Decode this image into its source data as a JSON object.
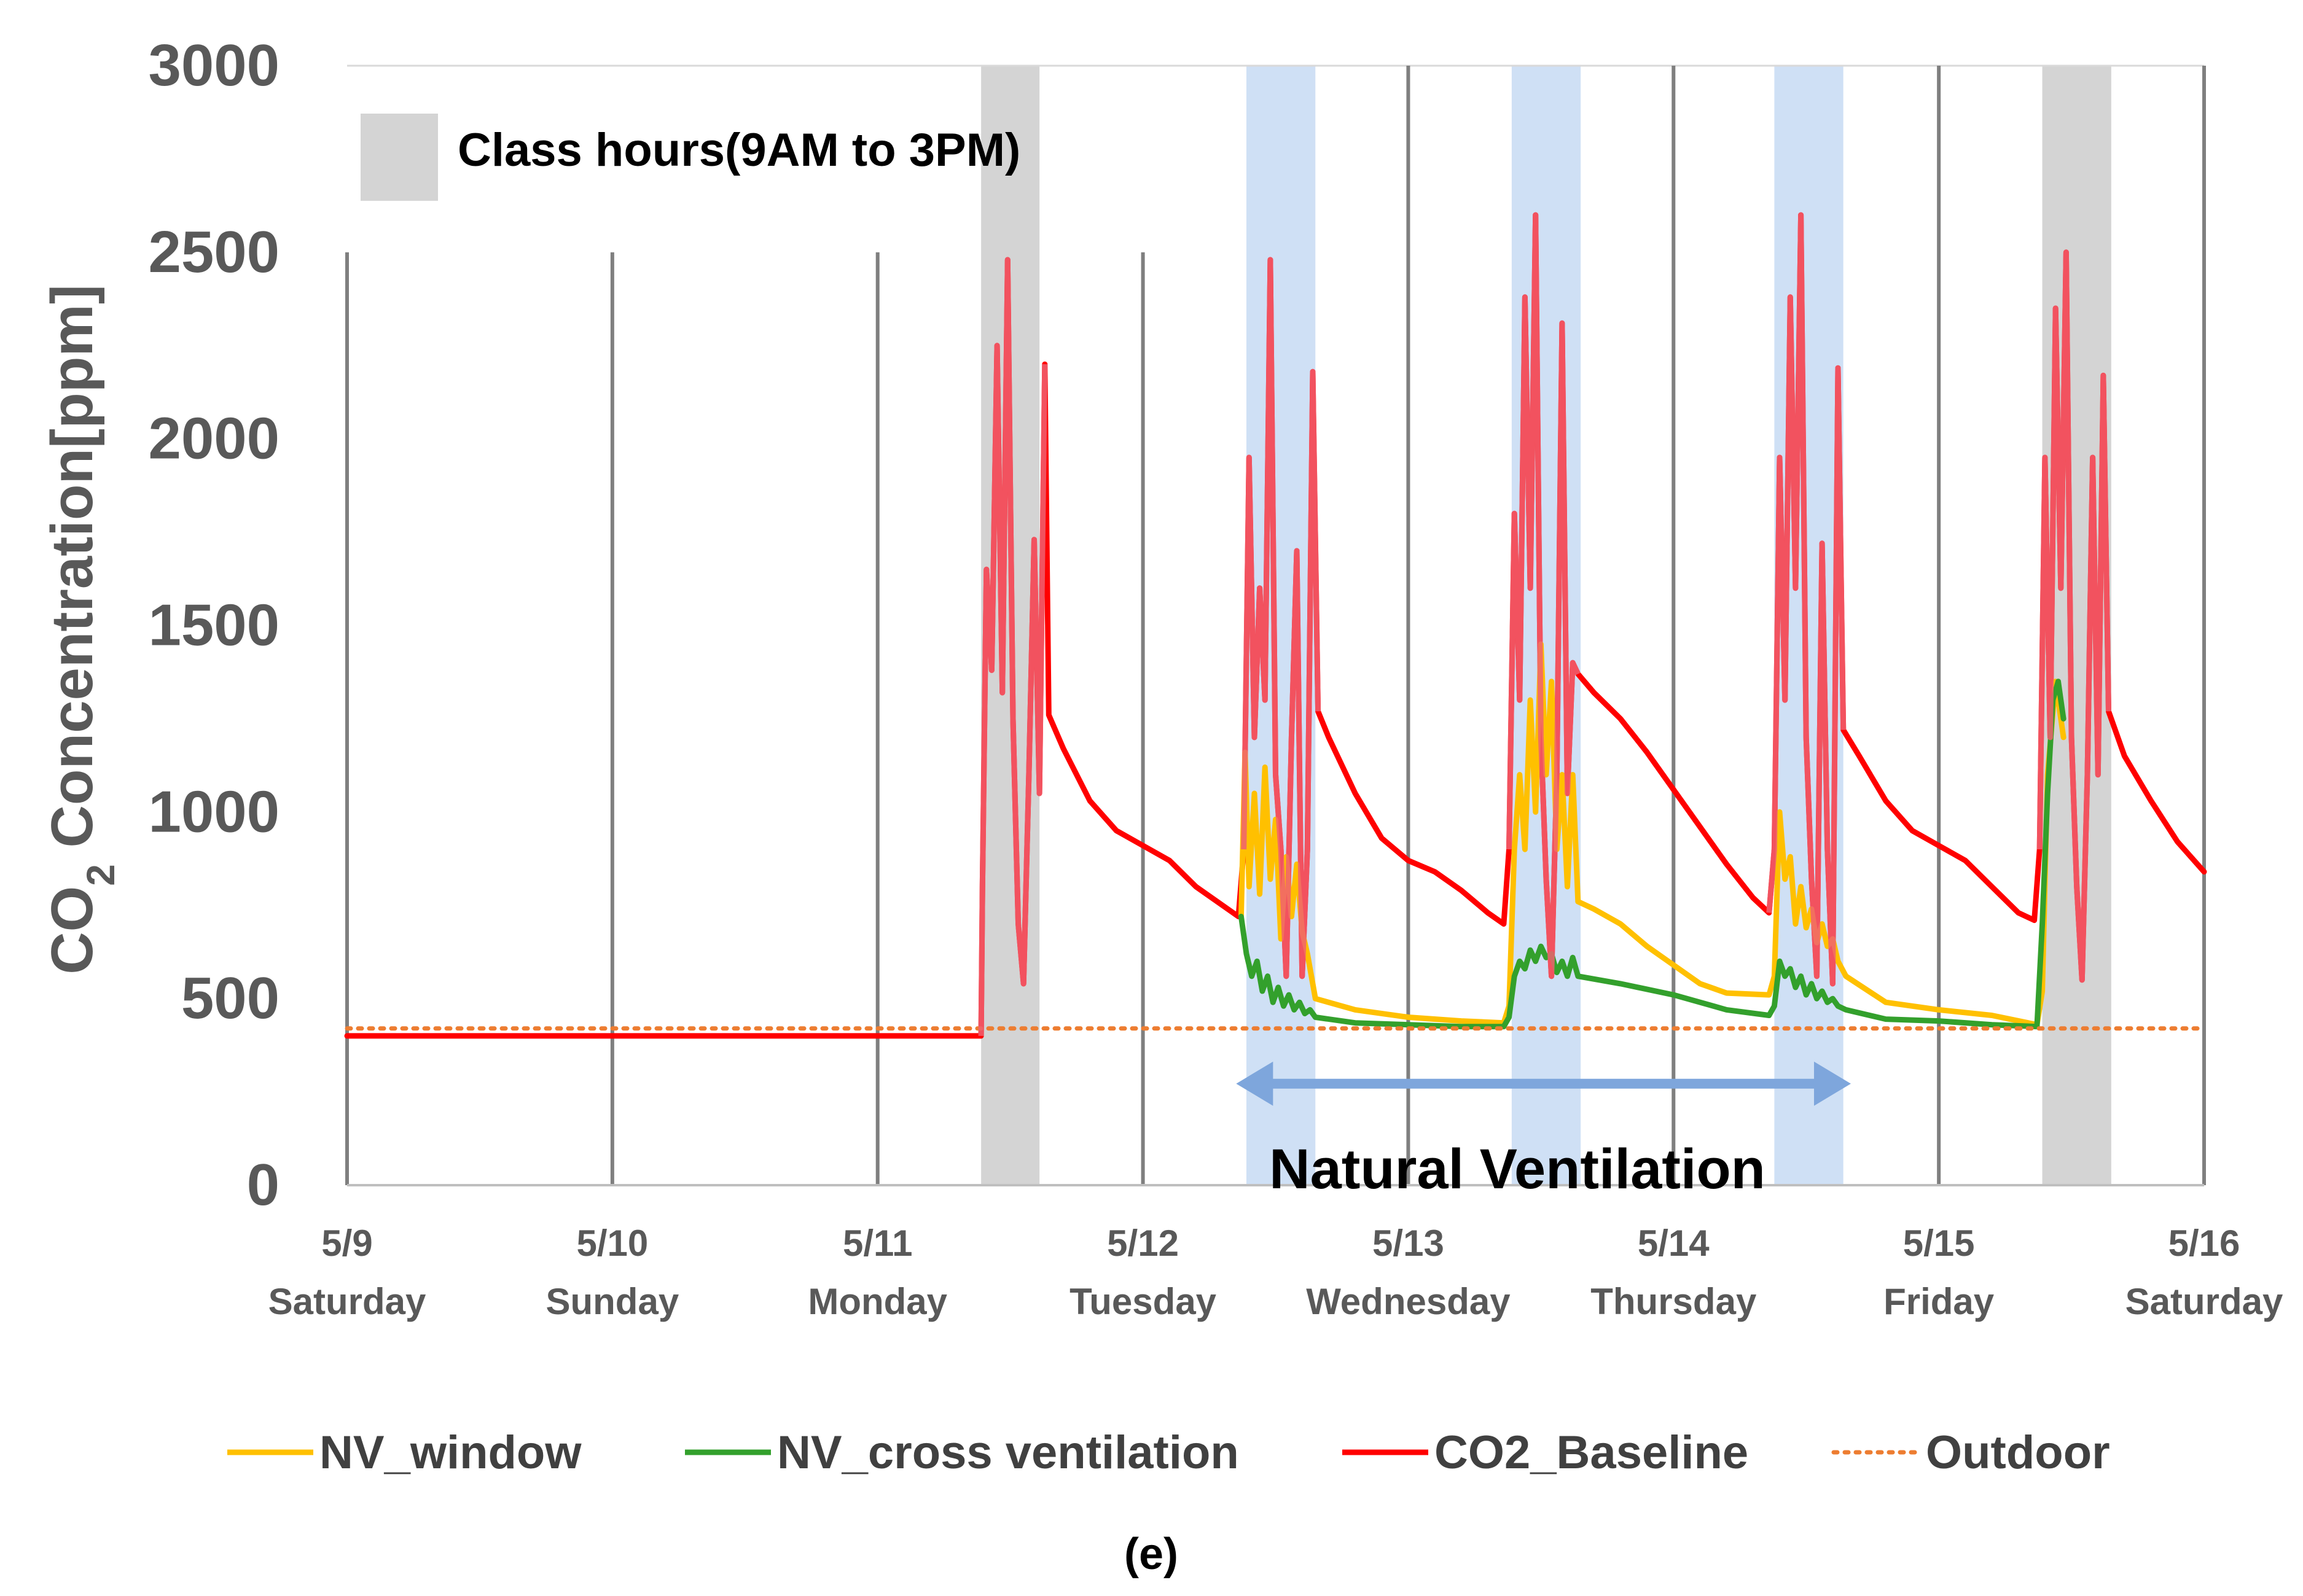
{
  "chart_data": {
    "type": "line",
    "ylabel": "CO2 Concentration[ppm]",
    "ylabel_parts": {
      "prefix": "CO",
      "subscript": "2",
      "suffix": " Concentration[ppm]"
    },
    "ylim": [
      0,
      3000
    ],
    "yticks": [
      0,
      500,
      1000,
      1500,
      2000,
      2500,
      3000
    ],
    "xlim": [
      0,
      7
    ],
    "x_unit": "days since 5/9 00:00",
    "x_ticks": [
      {
        "x": 0,
        "date": "5/9",
        "day": "Saturday"
      },
      {
        "x": 1,
        "date": "5/10",
        "day": "Sunday"
      },
      {
        "x": 2,
        "date": "5/11",
        "day": "Monday"
      },
      {
        "x": 3,
        "date": "5/12",
        "day": "Tuesday"
      },
      {
        "x": 4,
        "date": "5/13",
        "day": "Wednesday"
      },
      {
        "x": 5,
        "date": "5/14",
        "day": "Thursday"
      },
      {
        "x": 6,
        "date": "5/15",
        "day": "Friday"
      },
      {
        "x": 7,
        "date": "5/16",
        "day": "Saturday"
      }
    ],
    "grid": "vertical",
    "class_hours_label": "Class hours(9AM to 3PM)",
    "class_hours_bands": [
      {
        "x0": 2.39,
        "x1": 2.61,
        "kind": "class"
      },
      {
        "x0": 3.39,
        "x1": 3.65,
        "kind": "nv"
      },
      {
        "x0": 4.39,
        "x1": 4.65,
        "kind": "nv"
      },
      {
        "x0": 5.38,
        "x1": 5.64,
        "kind": "nv"
      },
      {
        "x0": 6.39,
        "x1": 6.65,
        "kind": "class"
      }
    ],
    "annotation": {
      "text": "Natural Ventilation",
      "from": 3.37,
      "to": 5.65,
      "y": 272
    },
    "series": [
      {
        "name": "NV_window",
        "color": "#ffc000",
        "style": "solid",
        "points": [
          [
            3.37,
            720
          ],
          [
            3.385,
            1160
          ],
          [
            3.4,
            800
          ],
          [
            3.42,
            1050
          ],
          [
            3.44,
            780
          ],
          [
            3.46,
            1120
          ],
          [
            3.48,
            820
          ],
          [
            3.5,
            980
          ],
          [
            3.52,
            660
          ],
          [
            3.54,
            880
          ],
          [
            3.56,
            720
          ],
          [
            3.58,
            860
          ],
          [
            3.6,
            680
          ],
          [
            3.62,
            620
          ],
          [
            3.65,
            500
          ],
          [
            3.8,
            470
          ],
          [
            4.0,
            450
          ],
          [
            4.2,
            440
          ],
          [
            4.36,
            435
          ],
          [
            4.38,
            480
          ],
          [
            4.4,
            900
          ],
          [
            4.42,
            1100
          ],
          [
            4.44,
            900
          ],
          [
            4.46,
            1300
          ],
          [
            4.48,
            1000
          ],
          [
            4.5,
            1450
          ],
          [
            4.52,
            1100
          ],
          [
            4.54,
            1350
          ],
          [
            4.56,
            900
          ],
          [
            4.58,
            1100
          ],
          [
            4.6,
            800
          ],
          [
            4.62,
            1100
          ],
          [
            4.64,
            760
          ],
          [
            4.7,
            740
          ],
          [
            4.8,
            700
          ],
          [
            4.9,
            640
          ],
          [
            5.0,
            590
          ],
          [
            5.1,
            540
          ],
          [
            5.2,
            515
          ],
          [
            5.36,
            510
          ],
          [
            5.38,
            560
          ],
          [
            5.4,
            1000
          ],
          [
            5.42,
            820
          ],
          [
            5.44,
            880
          ],
          [
            5.46,
            700
          ],
          [
            5.48,
            800
          ],
          [
            5.5,
            690
          ],
          [
            5.52,
            740
          ],
          [
            5.54,
            650
          ],
          [
            5.56,
            700
          ],
          [
            5.58,
            640
          ],
          [
            5.6,
            660
          ],
          [
            5.62,
            600
          ],
          [
            5.65,
            560
          ],
          [
            5.8,
            490
          ],
          [
            6.0,
            470
          ],
          [
            6.2,
            455
          ],
          [
            6.37,
            430
          ],
          [
            6.39,
            520
          ],
          [
            6.41,
            1100
          ],
          [
            6.44,
            1350
          ],
          [
            6.47,
            1200
          ]
        ]
      },
      {
        "name": "NV_cross ventilation",
        "color": "#33a02c",
        "style": "solid",
        "points": [
          [
            3.37,
            720
          ],
          [
            3.39,
            620
          ],
          [
            3.41,
            560
          ],
          [
            3.43,
            600
          ],
          [
            3.45,
            520
          ],
          [
            3.47,
            560
          ],
          [
            3.49,
            490
          ],
          [
            3.51,
            530
          ],
          [
            3.53,
            480
          ],
          [
            3.55,
            510
          ],
          [
            3.57,
            470
          ],
          [
            3.59,
            490
          ],
          [
            3.61,
            460
          ],
          [
            3.63,
            470
          ],
          [
            3.65,
            450
          ],
          [
            3.8,
            435
          ],
          [
            4.0,
            430
          ],
          [
            4.2,
            425
          ],
          [
            4.36,
            425
          ],
          [
            4.38,
            450
          ],
          [
            4.4,
            560
          ],
          [
            4.42,
            600
          ],
          [
            4.44,
            580
          ],
          [
            4.46,
            630
          ],
          [
            4.48,
            600
          ],
          [
            4.5,
            640
          ],
          [
            4.52,
            610
          ],
          [
            4.54,
            620
          ],
          [
            4.56,
            570
          ],
          [
            4.58,
            600
          ],
          [
            4.6,
            560
          ],
          [
            4.62,
            610
          ],
          [
            4.64,
            560
          ],
          [
            4.8,
            540
          ],
          [
            5.0,
            510
          ],
          [
            5.2,
            470
          ],
          [
            5.36,
            455
          ],
          [
            5.38,
            480
          ],
          [
            5.4,
            600
          ],
          [
            5.42,
            560
          ],
          [
            5.44,
            580
          ],
          [
            5.46,
            530
          ],
          [
            5.48,
            560
          ],
          [
            5.5,
            510
          ],
          [
            5.52,
            540
          ],
          [
            5.54,
            500
          ],
          [
            5.56,
            520
          ],
          [
            5.58,
            490
          ],
          [
            5.6,
            500
          ],
          [
            5.62,
            480
          ],
          [
            5.65,
            470
          ],
          [
            5.8,
            445
          ],
          [
            6.0,
            440
          ],
          [
            6.2,
            430
          ],
          [
            6.37,
            425
          ],
          [
            6.39,
            700
          ],
          [
            6.41,
            1050
          ],
          [
            6.43,
            1300
          ],
          [
            6.45,
            1350
          ],
          [
            6.47,
            1250
          ]
        ]
      },
      {
        "name": "CO2_Baseline",
        "color": "#ff0000",
        "style": "solid",
        "points": [
          [
            0,
            400
          ],
          [
            2.39,
            400
          ],
          [
            2.395,
            800
          ],
          [
            2.41,
            1650
          ],
          [
            2.43,
            1380
          ],
          [
            2.45,
            2250
          ],
          [
            2.47,
            1320
          ],
          [
            2.49,
            2480
          ],
          [
            2.51,
            1250
          ],
          [
            2.53,
            700
          ],
          [
            2.55,
            540
          ],
          [
            2.57,
            1100
          ],
          [
            2.59,
            1730
          ],
          [
            2.61,
            1050
          ],
          [
            2.63,
            2200
          ],
          [
            2.645,
            1260
          ],
          [
            2.7,
            1170
          ],
          [
            2.8,
            1030
          ],
          [
            2.9,
            950
          ],
          [
            3.0,
            910
          ],
          [
            3.1,
            870
          ],
          [
            3.2,
            800
          ],
          [
            3.36,
            720
          ],
          [
            3.38,
            900
          ],
          [
            3.4,
            1950
          ],
          [
            3.42,
            1200
          ],
          [
            3.44,
            1600
          ],
          [
            3.46,
            1300
          ],
          [
            3.48,
            2480
          ],
          [
            3.5,
            1100
          ],
          [
            3.52,
            900
          ],
          [
            3.54,
            560
          ],
          [
            3.56,
            1200
          ],
          [
            3.58,
            1700
          ],
          [
            3.6,
            560
          ],
          [
            3.62,
            900
          ],
          [
            3.64,
            2180
          ],
          [
            3.66,
            1270
          ],
          [
            3.7,
            1200
          ],
          [
            3.8,
            1050
          ],
          [
            3.9,
            930
          ],
          [
            4.0,
            870
          ],
          [
            4.1,
            840
          ],
          [
            4.2,
            790
          ],
          [
            4.3,
            730
          ],
          [
            4.36,
            700
          ],
          [
            4.38,
            900
          ],
          [
            4.4,
            1800
          ],
          [
            4.42,
            1300
          ],
          [
            4.44,
            2380
          ],
          [
            4.46,
            1600
          ],
          [
            4.48,
            2600
          ],
          [
            4.5,
            1200
          ],
          [
            4.52,
            820
          ],
          [
            4.54,
            560
          ],
          [
            4.56,
            1100
          ],
          [
            4.58,
            2310
          ],
          [
            4.6,
            1050
          ],
          [
            4.62,
            1400
          ],
          [
            4.64,
            1370
          ],
          [
            4.7,
            1320
          ],
          [
            4.8,
            1250
          ],
          [
            4.9,
            1160
          ],
          [
            5.0,
            1060
          ],
          [
            5.1,
            960
          ],
          [
            5.2,
            860
          ],
          [
            5.3,
            770
          ],
          [
            5.36,
            730
          ],
          [
            5.38,
            900
          ],
          [
            5.4,
            1950
          ],
          [
            5.42,
            1300
          ],
          [
            5.44,
            2380
          ],
          [
            5.46,
            1600
          ],
          [
            5.48,
            2600
          ],
          [
            5.5,
            1200
          ],
          [
            5.52,
            820
          ],
          [
            5.54,
            560
          ],
          [
            5.56,
            1720
          ],
          [
            5.58,
            900
          ],
          [
            5.6,
            540
          ],
          [
            5.62,
            2190
          ],
          [
            5.64,
            1220
          ],
          [
            5.7,
            1150
          ],
          [
            5.8,
            1030
          ],
          [
            5.9,
            950
          ],
          [
            6.0,
            910
          ],
          [
            6.1,
            870
          ],
          [
            6.2,
            800
          ],
          [
            6.3,
            730
          ],
          [
            6.36,
            710
          ],
          [
            6.38,
            900
          ],
          [
            6.4,
            1950
          ],
          [
            6.42,
            1200
          ],
          [
            6.44,
            2350
          ],
          [
            6.46,
            1600
          ],
          [
            6.48,
            2500
          ],
          [
            6.5,
            1200
          ],
          [
            6.52,
            800
          ],
          [
            6.54,
            550
          ],
          [
            6.56,
            1100
          ],
          [
            6.58,
            1950
          ],
          [
            6.6,
            1100
          ],
          [
            6.62,
            2170
          ],
          [
            6.64,
            1270
          ],
          [
            6.7,
            1150
          ],
          [
            6.8,
            1030
          ],
          [
            6.9,
            920
          ],
          [
            7.0,
            840
          ]
        ]
      },
      {
        "name": "Outdoor",
        "color": "#ed7d31",
        "style": "dotted",
        "points": [
          [
            0,
            420
          ],
          [
            7,
            420
          ]
        ]
      }
    ],
    "legend": [
      "NV_window",
      "NV_cross ventilation",
      "CO2_Baseline",
      "Outdoor"
    ],
    "legend_position": "bottom"
  },
  "caption": "(e)",
  "colors": {
    "class_band": "#d4d4d4",
    "nv_band": "#cfe0f5",
    "arrow": "#7ea6dc",
    "grid": "#7f7f7f",
    "tick_text": "#595959"
  }
}
